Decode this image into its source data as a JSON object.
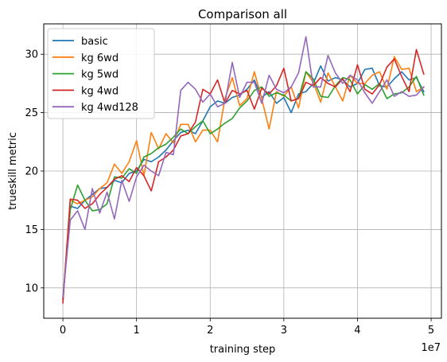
{
  "chart_data": {
    "type": "line",
    "title": "Comparison all",
    "xlabel": "training step",
    "ylabel": "trueskill metric",
    "x_scale_label": "1e7",
    "xlim": [
      -2600000.0,
      51400000.0
    ],
    "ylim": [
      7.4,
      32.6
    ],
    "x_ticks": [
      0,
      10000000,
      20000000,
      30000000,
      40000000,
      50000000
    ],
    "x_tick_labels": [
      "0",
      "1",
      "2",
      "3",
      "4",
      "5"
    ],
    "y_ticks": [
      10,
      15,
      20,
      25,
      30
    ],
    "y_tick_labels": [
      "10",
      "15",
      "20",
      "25",
      "30"
    ],
    "grid": true,
    "legend_position": "top-left",
    "x": [
      0,
      1000000,
      2000000,
      3000000,
      4000000,
      5000000,
      6000000,
      7000000,
      8000000,
      9000000,
      10000000,
      11000000,
      12000000,
      13000000,
      14000000,
      15000000,
      16000000,
      17000000,
      18000000,
      19000000,
      20000000,
      21000000,
      22000000,
      23000000,
      24000000,
      25000000,
      26000000,
      27000000,
      28000000,
      29000000,
      30000000,
      31000000,
      32000000,
      33000000,
      34000000,
      35000000,
      36000000,
      37000000,
      38000000,
      39000000,
      40000000,
      41000000,
      42000000,
      43000000,
      44000000,
      45000000,
      46000000,
      47000000,
      48000000,
      49000000
    ],
    "series": [
      {
        "name": "basic",
        "color": "#1f77b4",
        "values": [
          9.0,
          17.0,
          16.8,
          17.5,
          18.0,
          18.5,
          18.6,
          19.2,
          19.0,
          19.8,
          20.0,
          21.0,
          20.8,
          21.2,
          21.8,
          22.6,
          23.3,
          23.5,
          23.2,
          24.3,
          25.5,
          26.0,
          25.8,
          26.3,
          26.5,
          27.0,
          27.8,
          26.3,
          26.8,
          25.8,
          26.3,
          25.0,
          26.6,
          26.8,
          27.5,
          29.0,
          27.7,
          28.0,
          27.8,
          27.2,
          27.5,
          28.7,
          28.8,
          27.3,
          27.2,
          27.9,
          28.5,
          27.8,
          28.0,
          26.8
        ]
      },
      {
        "name": "kg 6wd",
        "color": "#ff7f0e",
        "values": [
          9.0,
          17.5,
          17.2,
          17.5,
          17.8,
          18.5,
          19.0,
          20.6,
          19.8,
          20.8,
          22.6,
          19.6,
          23.3,
          21.9,
          23.2,
          22.4,
          24.0,
          24.0,
          22.5,
          23.5,
          23.5,
          22.5,
          26.2,
          28.0,
          25.6,
          26.2,
          28.5,
          26.2,
          23.6,
          26.8,
          26.4,
          27.2,
          25.4,
          28.5,
          27.6,
          25.9,
          28.4,
          27.2,
          26.0,
          28.2,
          27.5,
          27.5,
          28.2,
          28.5,
          27.0,
          29.8,
          28.7,
          28.8,
          26.8,
          27.2
        ]
      },
      {
        "name": "kg 5wd",
        "color": "#2ca02c",
        "values": [
          9.0,
          16.7,
          18.8,
          17.5,
          16.6,
          16.7,
          17.2,
          19.5,
          19.4,
          20.2,
          19.8,
          21.2,
          21.5,
          22.0,
          22.3,
          22.9,
          23.6,
          23.2,
          23.8,
          24.3,
          23.2,
          23.6,
          24.1,
          24.5,
          25.4,
          26.0,
          26.9,
          27.2,
          26.4,
          26.7,
          26.5,
          26.0,
          26.2,
          28.5,
          27.9,
          26.4,
          26.3,
          27.3,
          28.0,
          27.8,
          26.6,
          27.4,
          27.0,
          27.5,
          26.2,
          26.6,
          26.7,
          27.2,
          28.1,
          26.5
        ]
      },
      {
        "name": "kg 4wd",
        "color": "#d62728",
        "values": [
          8.7,
          17.6,
          17.5,
          16.8,
          17.2,
          18.0,
          18.6,
          19.3,
          19.6,
          19.1,
          20.3,
          19.6,
          18.3,
          20.8,
          21.2,
          21.8,
          23.0,
          23.2,
          24.2,
          27.0,
          26.6,
          27.8,
          25.8,
          26.9,
          26.6,
          26.9,
          25.3,
          27.1,
          26.6,
          27.3,
          28.8,
          26.0,
          26.2,
          27.6,
          27.3,
          28.0,
          27.5,
          27.2,
          27.9,
          26.8,
          29.1,
          27.0,
          26.6,
          27.4,
          28.9,
          29.6,
          28.1,
          26.8,
          30.4,
          28.3
        ]
      },
      {
        "name": "kg 4wd128",
        "color": "#9467bd",
        "values": [
          9.2,
          15.8,
          16.6,
          15.0,
          18.5,
          16.4,
          18.2,
          15.9,
          19.2,
          17.4,
          19.5,
          20.5,
          20.0,
          19.6,
          21.6,
          21.4,
          26.9,
          27.6,
          27.0,
          25.9,
          26.6,
          25.5,
          25.8,
          29.3,
          26.3,
          27.6,
          27.6,
          25.8,
          28.2,
          27.0,
          26.7,
          27.2,
          28.4,
          31.5,
          27.2,
          27.2,
          29.9,
          28.4,
          27.5,
          28.2,
          27.8,
          26.7,
          25.8,
          26.8,
          27.8,
          26.4,
          26.8,
          26.4,
          26.5,
          27.2
        ]
      }
    ]
  }
}
